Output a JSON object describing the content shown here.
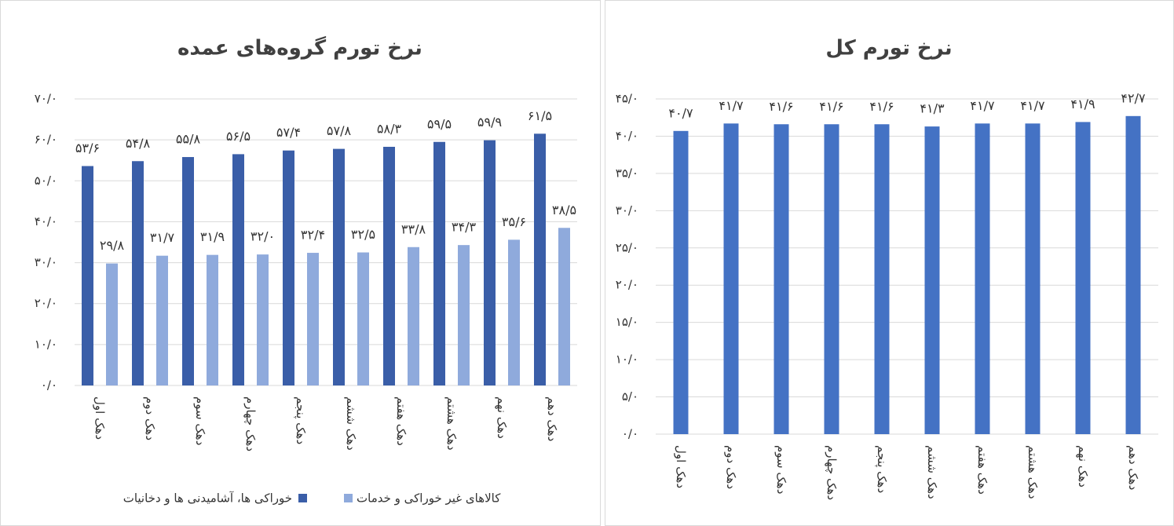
{
  "chart_data": [
    {
      "type": "bar",
      "title": "نرخ تورم گروه‌های عمده",
      "categories": [
        "دهک اول",
        "دهک دوم",
        "دهک سوم",
        "دهک چهارم",
        "دهک پنجم",
        "دهک ششم",
        "دهک هفتم",
        "دهک هشتم",
        "دهک نهم",
        "دهک دهم"
      ],
      "series": [
        {
          "name": "خوراکی ها، آشامیدنی ها و دخانیات",
          "color": "#3a5ea8",
          "values": [
            53.6,
            54.8,
            55.8,
            56.5,
            57.4,
            57.8,
            58.3,
            59.5,
            59.9,
            61.5
          ],
          "value_labels": [
            "۵۳/۶",
            "۵۴/۸",
            "۵۵/۸",
            "۵۶/۵",
            "۵۷/۴",
            "۵۷/۸",
            "۵۸/۳",
            "۵۹/۵",
            "۵۹/۹",
            "۶۱/۵"
          ]
        },
        {
          "name": "کالاهای غیر خوراکی و خدمات",
          "color": "#8faadc",
          "values": [
            29.8,
            31.7,
            31.9,
            32.0,
            32.4,
            32.5,
            33.8,
            34.3,
            35.6,
            38.5
          ],
          "value_labels": [
            "۲۹/۸",
            "۳۱/۷",
            "۳۱/۹",
            "۳۲/۰",
            "۳۲/۴",
            "۳۲/۵",
            "۳۳/۸",
            "۳۴/۳",
            "۳۵/۶",
            "۳۸/۵"
          ]
        }
      ],
      "ylim": [
        0,
        70
      ],
      "yticks": [
        {
          "value": 0,
          "label": "۰/۰"
        },
        {
          "value": 10,
          "label": "۱۰/۰"
        },
        {
          "value": 20,
          "label": "۲۰/۰"
        },
        {
          "value": 30,
          "label": "۳۰/۰"
        },
        {
          "value": 40,
          "label": "۴۰/۰"
        },
        {
          "value": 50,
          "label": "۵۰/۰"
        },
        {
          "value": 60,
          "label": "۶۰/۰"
        },
        {
          "value": 70,
          "label": "۷۰/۰"
        }
      ],
      "grid": true,
      "legend": "bottom"
    },
    {
      "type": "bar",
      "title": "نرخ تورم کل",
      "categories": [
        "دهک اول",
        "دهک دوم",
        "دهک سوم",
        "دهک چهارم",
        "دهک پنجم",
        "دهک ششم",
        "دهک هفتم",
        "دهک هشتم",
        "دهک نهم",
        "دهک دهم"
      ],
      "values": [
        40.7,
        41.7,
        41.6,
        41.6,
        41.6,
        41.3,
        41.7,
        41.7,
        41.9,
        42.7
      ],
      "value_labels": [
        "۴۰/۷",
        "۴۱/۷",
        "۴۱/۶",
        "۴۱/۶",
        "۴۱/۶",
        "۴۱/۳",
        "۴۱/۷",
        "۴۱/۷",
        "۴۱/۹",
        "۴۲/۷"
      ],
      "color": "#4472c4",
      "ylim": [
        0,
        45
      ],
      "yticks": [
        {
          "value": 0,
          "label": "۰/۰"
        },
        {
          "value": 5,
          "label": "۵/۰"
        },
        {
          "value": 10,
          "label": "۱۰/۰"
        },
        {
          "value": 15,
          "label": "۱۵/۰"
        },
        {
          "value": 20,
          "label": "۲۰/۰"
        },
        {
          "value": 25,
          "label": "۲۵/۰"
        },
        {
          "value": 30,
          "label": "۳۰/۰"
        },
        {
          "value": 35,
          "label": "۳۵/۰"
        },
        {
          "value": 40,
          "label": "۴۰/۰"
        },
        {
          "value": 45,
          "label": "۴۵/۰"
        }
      ],
      "grid": true
    }
  ]
}
